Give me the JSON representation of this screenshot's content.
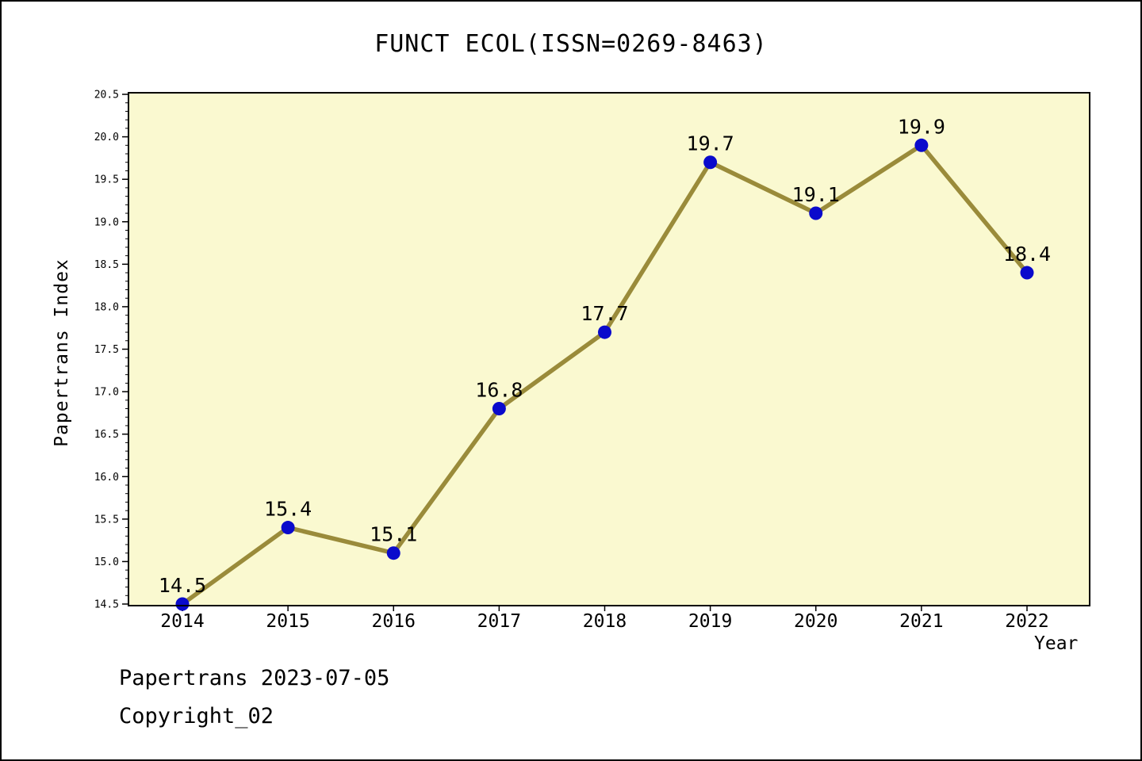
{
  "chart_data": {
    "type": "line",
    "title": "FUNCT ECOL(ISSN=0269-8463)",
    "xlabel": "Year",
    "ylabel": "Papertrans Index",
    "categories": [
      2014,
      2015,
      2016,
      2017,
      2018,
      2019,
      2020,
      2021,
      2022
    ],
    "values": [
      14.5,
      15.4,
      15.1,
      16.8,
      17.7,
      19.7,
      19.1,
      19.9,
      18.4
    ],
    "ylim": [
      14.5,
      20.5
    ],
    "ytick_step": 0.5,
    "yminor_step": 0.1,
    "grid": false,
    "legend": "none",
    "point_labels": [
      "14.5",
      "15.4",
      "15.1",
      "16.8",
      "17.7",
      "19.7",
      "19.1",
      "19.9",
      "18.4"
    ],
    "colors": {
      "plot_bg": "#FAF9D0",
      "line": "#9A8B3A",
      "marker": "#0A0ACC",
      "frame": "#000000",
      "text": "#000000"
    }
  },
  "footer": {
    "line1": "Papertrans 2023-07-05",
    "line2": "Copyright_02"
  }
}
